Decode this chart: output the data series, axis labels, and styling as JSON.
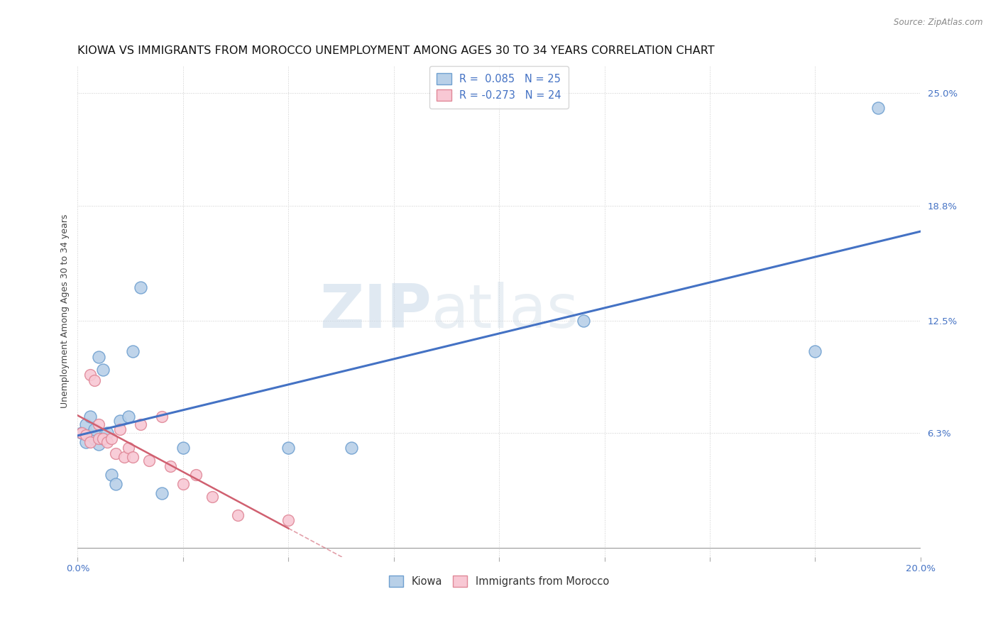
{
  "title": "KIOWA VS IMMIGRANTS FROM MOROCCO UNEMPLOYMENT AMONG AGES 30 TO 34 YEARS CORRELATION CHART",
  "source": "Source: ZipAtlas.com",
  "ylabel": "Unemployment Among Ages 30 to 34 years",
  "xlim": [
    0,
    0.2
  ],
  "ylim": [
    -0.005,
    0.265
  ],
  "xticks": [
    0.0,
    0.025,
    0.05,
    0.075,
    0.1,
    0.125,
    0.15,
    0.175,
    0.2
  ],
  "xticklabels": [
    "0.0%",
    "",
    "",
    "",
    "",
    "",
    "",
    "",
    "20.0%"
  ],
  "ytick_positions": [
    0.0,
    0.063,
    0.125,
    0.188,
    0.25
  ],
  "ytick_labels": [
    "",
    "6.3%",
    "12.5%",
    "18.8%",
    "25.0%"
  ],
  "kiowa_x": [
    0.001,
    0.002,
    0.002,
    0.003,
    0.003,
    0.004,
    0.004,
    0.005,
    0.005,
    0.006,
    0.006,
    0.007,
    0.008,
    0.009,
    0.01,
    0.012,
    0.013,
    0.015,
    0.02,
    0.025,
    0.05,
    0.065,
    0.12,
    0.175,
    0.19
  ],
  "kiowa_y": [
    0.063,
    0.058,
    0.068,
    0.062,
    0.072,
    0.06,
    0.065,
    0.057,
    0.105,
    0.06,
    0.098,
    0.063,
    0.04,
    0.035,
    0.07,
    0.072,
    0.108,
    0.143,
    0.03,
    0.055,
    0.055,
    0.055,
    0.125,
    0.108,
    0.242
  ],
  "morocco_x": [
    0.001,
    0.002,
    0.003,
    0.003,
    0.004,
    0.005,
    0.005,
    0.006,
    0.007,
    0.008,
    0.009,
    0.01,
    0.011,
    0.012,
    0.013,
    0.015,
    0.017,
    0.02,
    0.022,
    0.025,
    0.028,
    0.032,
    0.038,
    0.05
  ],
  "morocco_y": [
    0.063,
    0.062,
    0.058,
    0.095,
    0.092,
    0.06,
    0.068,
    0.06,
    0.058,
    0.06,
    0.052,
    0.065,
    0.05,
    0.055,
    0.05,
    0.068,
    0.048,
    0.072,
    0.045,
    0.035,
    0.04,
    0.028,
    0.018,
    0.015
  ],
  "kiowa_R": 0.085,
  "kiowa_N": 25,
  "morocco_R": -0.273,
  "morocco_N": 24,
  "kiowa_color": "#b8d0e8",
  "kiowa_edge_color": "#6fa0d0",
  "kiowa_line_color": "#4472c4",
  "morocco_color": "#f8c8d4",
  "morocco_edge_color": "#e08898",
  "morocco_line_color": "#d06070",
  "watermark_zip": "ZIP",
  "watermark_atlas": "atlas",
  "watermark_color": "#ccd8e8",
  "title_fontsize": 11.5,
  "label_fontsize": 9,
  "tick_fontsize": 9.5
}
